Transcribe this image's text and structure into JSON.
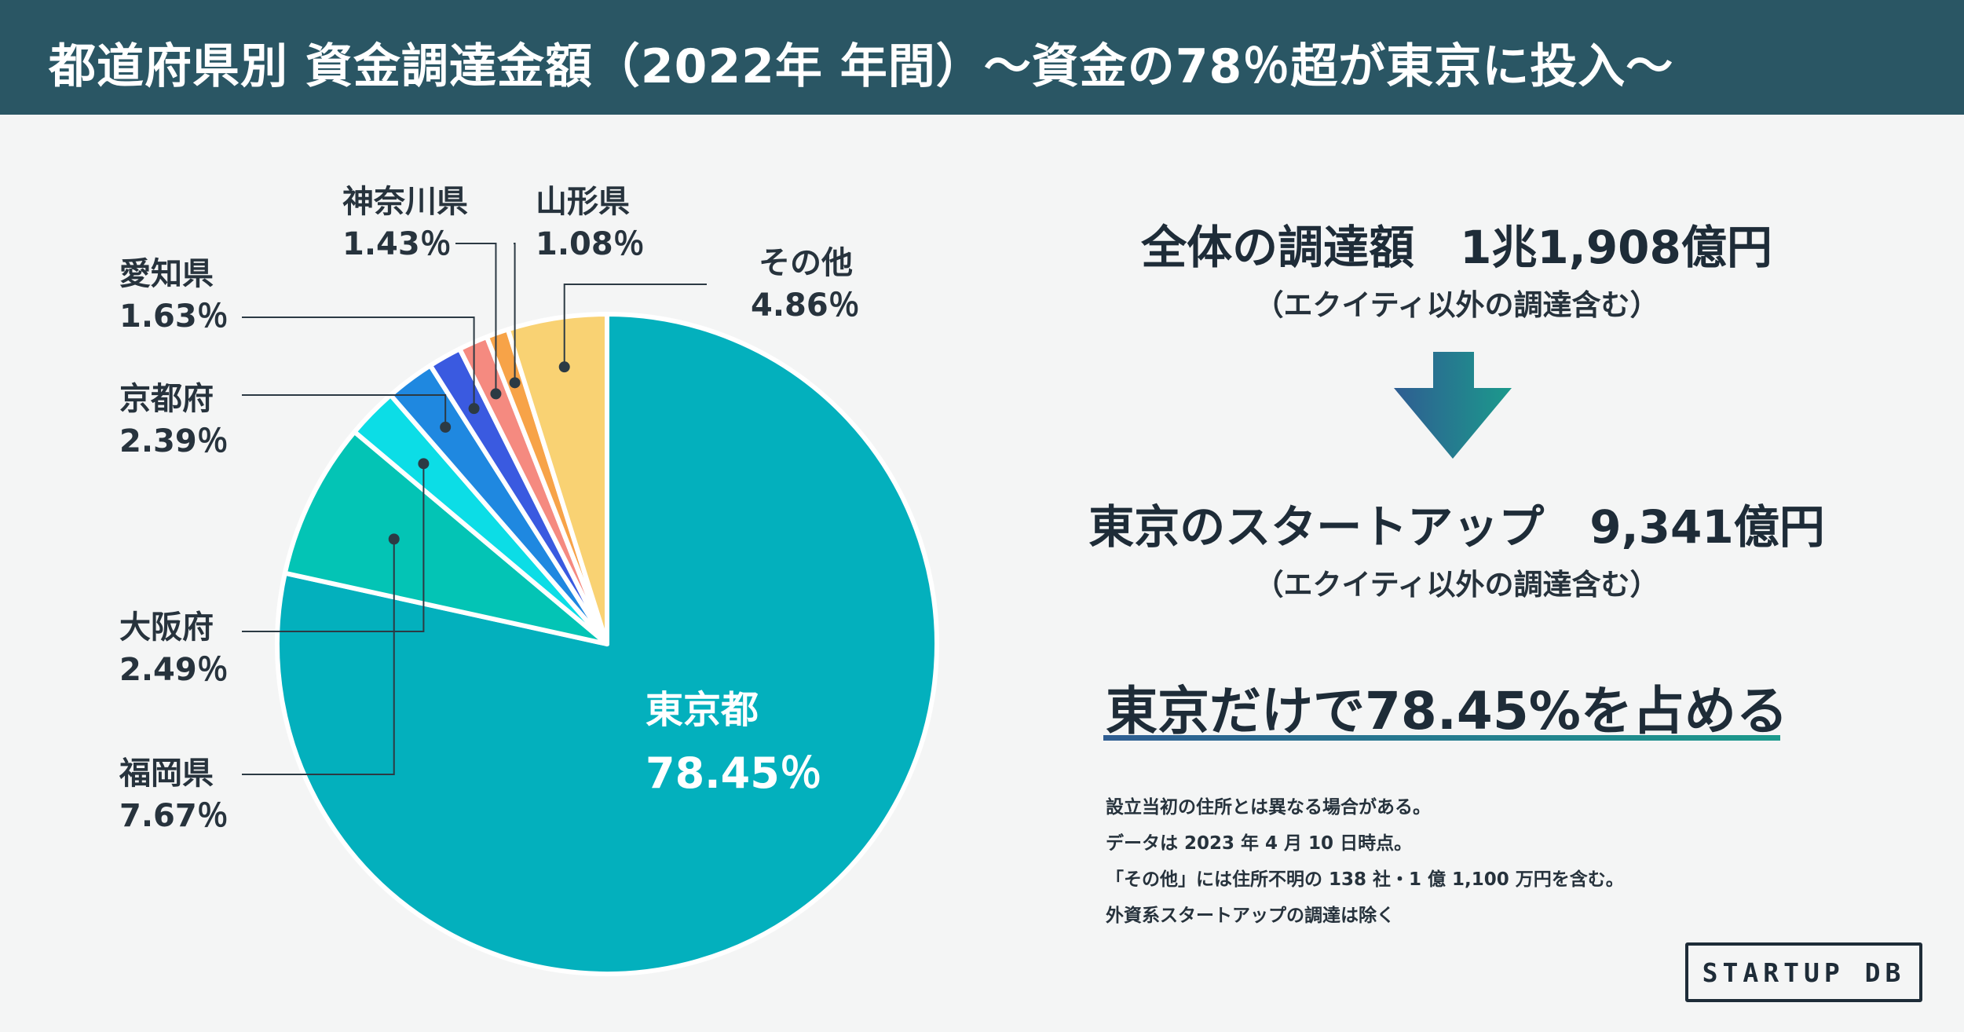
{
  "header": {
    "title": "都道府県別 資金調達金額（2022年 年間）～資金の78％超が東京に投入～"
  },
  "chart_data": {
    "type": "pie",
    "title": "都道府県別 資金調達金額（2022年 年間）",
    "start": "12 o'clock, clockwise",
    "slices": [
      {
        "name": "東京都",
        "value": 78.45,
        "label": "78.45％",
        "color": "#03b0bd"
      },
      {
        "name": "福岡県",
        "value": 7.67,
        "label": "7.67％",
        "color": "#03c4b5"
      },
      {
        "name": "大阪府",
        "value": 2.49,
        "label": "2.49％",
        "color": "#0cdde6"
      },
      {
        "name": "京都府",
        "value": 2.39,
        "label": "2.39％",
        "color": "#1f88e0"
      },
      {
        "name": "愛知県",
        "value": 1.63,
        "label": "1.63％",
        "color": "#3a5ae0"
      },
      {
        "name": "神奈川県",
        "value": 1.43,
        "label": "1.43％",
        "color": "#f58a80"
      },
      {
        "name": "山形県",
        "value": 1.08,
        "label": "1.08％",
        "color": "#f7a348"
      },
      {
        "name": "その他",
        "value": 4.86,
        "label": "4.86％",
        "color": "#f9d273"
      }
    ]
  },
  "summary": {
    "total_label": "全体の調達額　1兆1,908億円",
    "total_note": "（エクイティ以外の調達含む）",
    "tokyo_label": "東京のスタートアップ　9,341億円",
    "tokyo_note": "（エクイティ以外の調達含む）",
    "headline": "東京だけで78.45%を占める"
  },
  "notes": [
    "設立当初の住所とは異なる場合がある。",
    "データは 2023 年 4 月 10 日時点。",
    "「その他」には住所不明の 138 社・1 億 1,100 万円を含む。",
    "外資系スタートアップの調達は除く"
  ],
  "logo": "STARTUP DB",
  "colors": {
    "header_bg": "#2a5664",
    "leader_line": "#2c3a44",
    "arrow_start": "#2f5d92",
    "arrow_end": "#1b9a8c"
  }
}
